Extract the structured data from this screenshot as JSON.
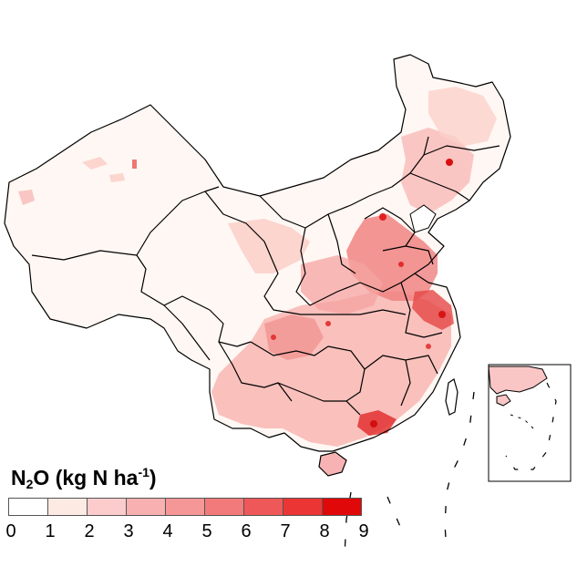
{
  "legend": {
    "title_main": "N",
    "title_sub": "2",
    "title_mid": "O (kg N ha",
    "title_sup": "-1",
    "title_end": ")",
    "classes": [
      "#ffffff",
      "#fdebe3",
      "#fccccc",
      "#f9b0b0",
      "#f69797",
      "#f27a7a",
      "#ef5858",
      "#eb3535",
      "#e00808"
    ],
    "tick_labels": [
      "0",
      "1",
      "2",
      "3",
      "4",
      "5",
      "6",
      "7",
      "8",
      "9"
    ]
  },
  "map": {
    "colors": {
      "border": "#000000",
      "very_low": "#fdf0ea",
      "low": "#fbd6d2",
      "medium": "#f5a3a3",
      "high": "#ee6c6c",
      "very_high": "#e52525"
    }
  }
}
